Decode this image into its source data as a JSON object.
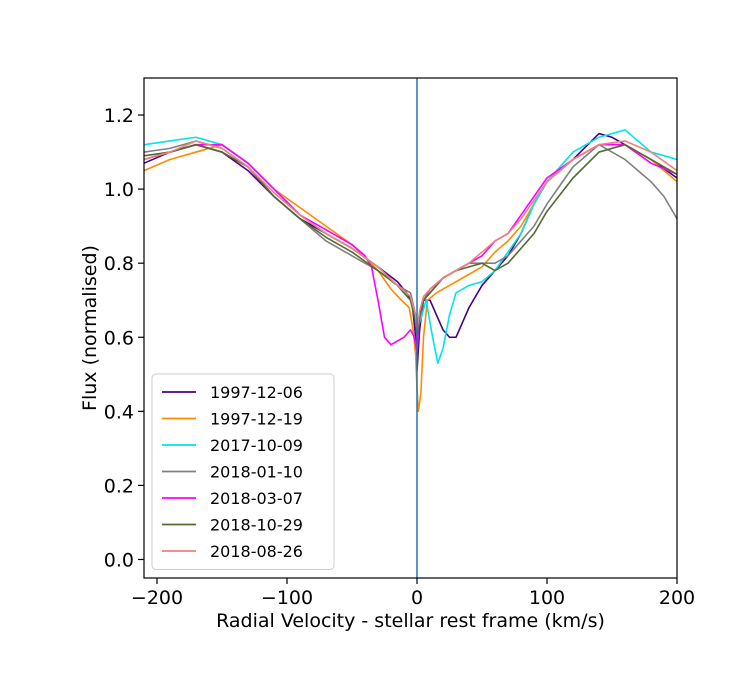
{
  "chart_data": {
    "type": "line",
    "xlabel": "Radial Velocity - stellar rest frame (km/s)",
    "ylabel": "Flux (normalised)",
    "xlim": [
      -210,
      200
    ],
    "ylim": [
      -0.05,
      1.3
    ],
    "xticks": [
      -200,
      -100,
      0,
      100,
      200
    ],
    "yticks": [
      0.0,
      0.2,
      0.4,
      0.6,
      0.8,
      1.0,
      1.2
    ],
    "xtick_labels": [
      "−200",
      "−100",
      "0",
      "100",
      "200"
    ],
    "ytick_labels": [
      "0.0",
      "0.2",
      "0.4",
      "0.6",
      "0.8",
      "1.0",
      "1.2"
    ],
    "vline": {
      "x": 0,
      "color": "#1f77b4"
    },
    "legend_position": "lower-left",
    "grid": false,
    "series": [
      {
        "name": "1997-12-06",
        "color": "#4b0082",
        "points": [
          [
            -210,
            1.07
          ],
          [
            -190,
            1.1
          ],
          [
            -170,
            1.12
          ],
          [
            -150,
            1.1
          ],
          [
            -130,
            1.05
          ],
          [
            -110,
            0.98
          ],
          [
            -90,
            0.92
          ],
          [
            -70,
            0.88
          ],
          [
            -50,
            0.84
          ],
          [
            -30,
            0.79
          ],
          [
            -15,
            0.75
          ],
          [
            -8,
            0.72
          ],
          [
            -4,
            0.7
          ],
          [
            -1,
            0.6
          ],
          [
            0,
            0.51
          ],
          [
            2,
            0.62
          ],
          [
            5,
            0.7
          ],
          [
            10,
            0.7
          ],
          [
            15,
            0.66
          ],
          [
            20,
            0.62
          ],
          [
            25,
            0.6
          ],
          [
            30,
            0.6
          ],
          [
            35,
            0.64
          ],
          [
            40,
            0.68
          ],
          [
            50,
            0.74
          ],
          [
            60,
            0.78
          ],
          [
            70,
            0.82
          ],
          [
            80,
            0.88
          ],
          [
            90,
            0.96
          ],
          [
            100,
            1.02
          ],
          [
            120,
            1.08
          ],
          [
            140,
            1.15
          ],
          [
            150,
            1.14
          ],
          [
            160,
            1.12
          ],
          [
            180,
            1.08
          ],
          [
            200,
            1.03
          ]
        ]
      },
      {
        "name": "1997-12-19",
        "color": "#ff8c00",
        "points": [
          [
            -210,
            1.05
          ],
          [
            -190,
            1.08
          ],
          [
            -170,
            1.1
          ],
          [
            -150,
            1.12
          ],
          [
            -130,
            1.07
          ],
          [
            -110,
            1.0
          ],
          [
            -90,
            0.95
          ],
          [
            -70,
            0.9
          ],
          [
            -50,
            0.85
          ],
          [
            -30,
            0.78
          ],
          [
            -20,
            0.73
          ],
          [
            -12,
            0.7
          ],
          [
            -6,
            0.68
          ],
          [
            -3,
            0.62
          ],
          [
            -1,
            0.55
          ],
          [
            0,
            0.46
          ],
          [
            1,
            0.4
          ],
          [
            3,
            0.45
          ],
          [
            5,
            0.6
          ],
          [
            8,
            0.7
          ],
          [
            15,
            0.72
          ],
          [
            25,
            0.74
          ],
          [
            35,
            0.76
          ],
          [
            50,
            0.79
          ],
          [
            60,
            0.83
          ],
          [
            70,
            0.86
          ],
          [
            80,
            0.9
          ],
          [
            90,
            0.96
          ],
          [
            100,
            1.02
          ],
          [
            120,
            1.08
          ],
          [
            140,
            1.12
          ],
          [
            160,
            1.12
          ],
          [
            180,
            1.08
          ],
          [
            200,
            1.02
          ]
        ]
      },
      {
        "name": "2017-10-09",
        "color": "#00e5e5",
        "points": [
          [
            -210,
            1.12
          ],
          [
            -190,
            1.13
          ],
          [
            -170,
            1.14
          ],
          [
            -150,
            1.12
          ],
          [
            -130,
            1.07
          ],
          [
            -110,
            1.0
          ],
          [
            -90,
            0.93
          ],
          [
            -70,
            0.88
          ],
          [
            -50,
            0.84
          ],
          [
            -30,
            0.79
          ],
          [
            -15,
            0.74
          ],
          [
            -5,
            0.7
          ],
          [
            -2,
            0.66
          ],
          [
            0,
            0.62
          ],
          [
            3,
            0.65
          ],
          [
            7,
            0.7
          ],
          [
            12,
            0.6
          ],
          [
            16,
            0.53
          ],
          [
            20,
            0.57
          ],
          [
            25,
            0.66
          ],
          [
            30,
            0.72
          ],
          [
            40,
            0.74
          ],
          [
            50,
            0.75
          ],
          [
            60,
            0.78
          ],
          [
            70,
            0.83
          ],
          [
            80,
            0.88
          ],
          [
            90,
            0.96
          ],
          [
            100,
            1.02
          ],
          [
            120,
            1.1
          ],
          [
            140,
            1.14
          ],
          [
            160,
            1.16
          ],
          [
            180,
            1.1
          ],
          [
            200,
            1.08
          ]
        ]
      },
      {
        "name": "2018-01-10",
        "color": "#808080",
        "points": [
          [
            -210,
            1.1
          ],
          [
            -190,
            1.11
          ],
          [
            -170,
            1.13
          ],
          [
            -150,
            1.11
          ],
          [
            -130,
            1.06
          ],
          [
            -110,
            0.98
          ],
          [
            -90,
            0.92
          ],
          [
            -70,
            0.86
          ],
          [
            -50,
            0.82
          ],
          [
            -30,
            0.78
          ],
          [
            -15,
            0.74
          ],
          [
            -5,
            0.72
          ],
          [
            -1,
            0.66
          ],
          [
            0,
            0.6
          ],
          [
            2,
            0.65
          ],
          [
            5,
            0.7
          ],
          [
            10,
            0.73
          ],
          [
            20,
            0.76
          ],
          [
            30,
            0.78
          ],
          [
            40,
            0.8
          ],
          [
            50,
            0.8
          ],
          [
            60,
            0.8
          ],
          [
            70,
            0.82
          ],
          [
            80,
            0.86
          ],
          [
            90,
            0.9
          ],
          [
            100,
            0.96
          ],
          [
            120,
            1.06
          ],
          [
            140,
            1.12
          ],
          [
            160,
            1.08
          ],
          [
            180,
            1.02
          ],
          [
            190,
            0.98
          ],
          [
            200,
            0.92
          ]
        ]
      },
      {
        "name": "2018-03-07",
        "color": "#ff00ff",
        "points": [
          [
            -210,
            1.08
          ],
          [
            -190,
            1.1
          ],
          [
            -170,
            1.12
          ],
          [
            -150,
            1.12
          ],
          [
            -130,
            1.07
          ],
          [
            -110,
            1.0
          ],
          [
            -90,
            0.93
          ],
          [
            -70,
            0.89
          ],
          [
            -50,
            0.85
          ],
          [
            -40,
            0.82
          ],
          [
            -35,
            0.79
          ],
          [
            -30,
            0.7
          ],
          [
            -25,
            0.6
          ],
          [
            -20,
            0.58
          ],
          [
            -15,
            0.59
          ],
          [
            -10,
            0.6
          ],
          [
            -5,
            0.62
          ],
          [
            -2,
            0.6
          ],
          [
            0,
            0.56
          ],
          [
            2,
            0.66
          ],
          [
            5,
            0.7
          ],
          [
            10,
            0.72
          ],
          [
            20,
            0.76
          ],
          [
            30,
            0.78
          ],
          [
            40,
            0.8
          ],
          [
            50,
            0.82
          ],
          [
            60,
            0.86
          ],
          [
            70,
            0.88
          ],
          [
            80,
            0.93
          ],
          [
            90,
            0.98
          ],
          [
            100,
            1.03
          ],
          [
            120,
            1.08
          ],
          [
            140,
            1.12
          ],
          [
            160,
            1.12
          ],
          [
            180,
            1.07
          ],
          [
            200,
            1.04
          ]
        ]
      },
      {
        "name": "2018-10-29",
        "color": "#556b2f",
        "points": [
          [
            -210,
            1.09
          ],
          [
            -190,
            1.1
          ],
          [
            -170,
            1.12
          ],
          [
            -150,
            1.1
          ],
          [
            -130,
            1.06
          ],
          [
            -110,
            0.98
          ],
          [
            -90,
            0.92
          ],
          [
            -70,
            0.87
          ],
          [
            -50,
            0.83
          ],
          [
            -30,
            0.78
          ],
          [
            -15,
            0.74
          ],
          [
            -5,
            0.7
          ],
          [
            -1,
            0.64
          ],
          [
            0,
            0.6
          ],
          [
            2,
            0.66
          ],
          [
            5,
            0.7
          ],
          [
            10,
            0.72
          ],
          [
            20,
            0.76
          ],
          [
            30,
            0.78
          ],
          [
            40,
            0.79
          ],
          [
            50,
            0.8
          ],
          [
            60,
            0.78
          ],
          [
            70,
            0.8
          ],
          [
            80,
            0.84
          ],
          [
            90,
            0.88
          ],
          [
            100,
            0.94
          ],
          [
            120,
            1.03
          ],
          [
            140,
            1.1
          ],
          [
            160,
            1.12
          ],
          [
            180,
            1.08
          ],
          [
            200,
            1.04
          ]
        ]
      },
      {
        "name": "2018-08-26",
        "color": "#f08080",
        "points": [
          [
            -210,
            1.08
          ],
          [
            -190,
            1.1
          ],
          [
            -170,
            1.13
          ],
          [
            -150,
            1.11
          ],
          [
            -130,
            1.06
          ],
          [
            -110,
            0.99
          ],
          [
            -90,
            0.93
          ],
          [
            -70,
            0.88
          ],
          [
            -50,
            0.84
          ],
          [
            -30,
            0.79
          ],
          [
            -15,
            0.74
          ],
          [
            -5,
            0.71
          ],
          [
            -1,
            0.66
          ],
          [
            0,
            0.62
          ],
          [
            2,
            0.67
          ],
          [
            5,
            0.71
          ],
          [
            10,
            0.73
          ],
          [
            20,
            0.76
          ],
          [
            30,
            0.78
          ],
          [
            40,
            0.8
          ],
          [
            50,
            0.83
          ],
          [
            60,
            0.86
          ],
          [
            70,
            0.88
          ],
          [
            80,
            0.92
          ],
          [
            90,
            0.97
          ],
          [
            100,
            1.02
          ],
          [
            120,
            1.08
          ],
          [
            140,
            1.12
          ],
          [
            160,
            1.13
          ],
          [
            180,
            1.1
          ],
          [
            200,
            1.05
          ]
        ]
      }
    ]
  }
}
